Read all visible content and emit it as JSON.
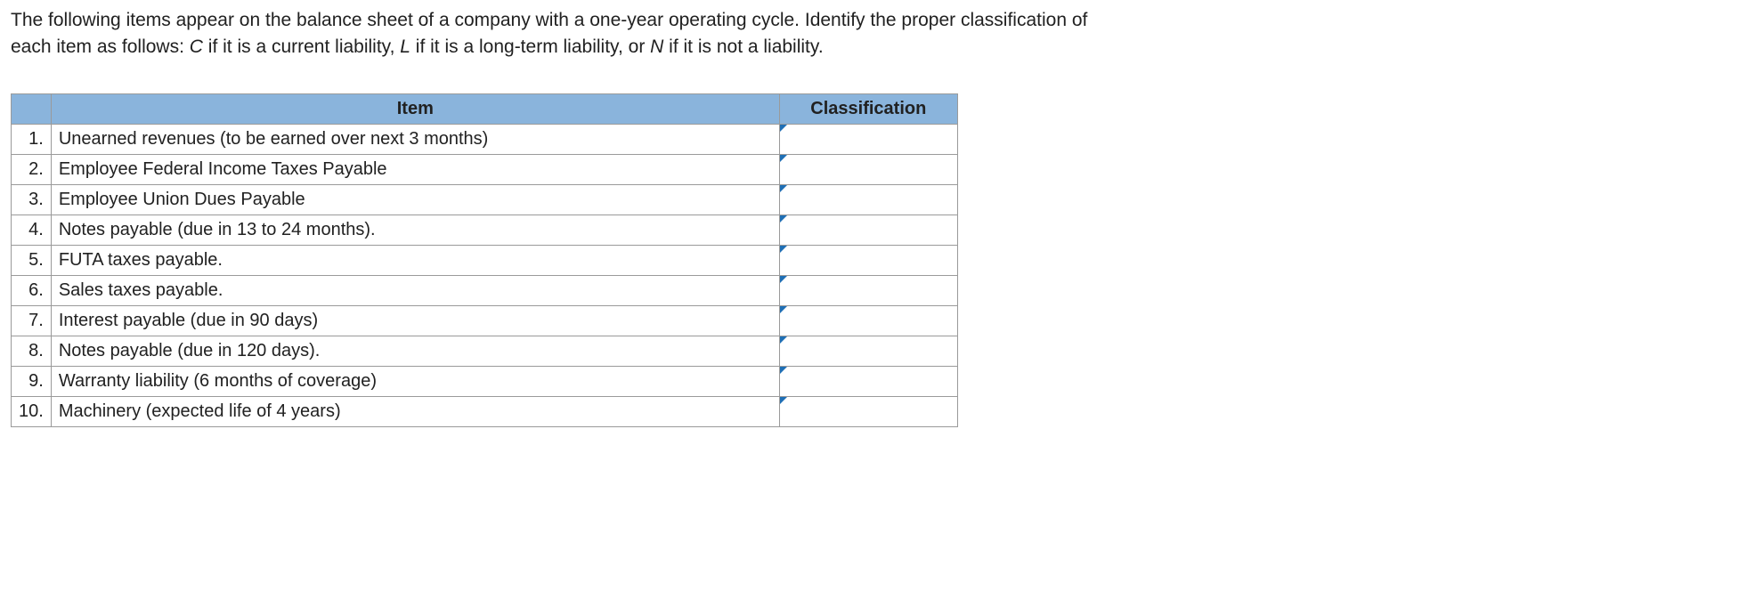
{
  "instructions": {
    "line1": "The following items appear on the balance sheet of a company with a one-year operating cycle. Identify the proper classification of",
    "line2_pre": "each item as follows: ",
    "c": "C",
    "c_desc": " if it is a current liability, ",
    "l": "L",
    "l_desc": " if it is a long-term liability, or ",
    "n": "N",
    "n_desc": " if it is not a liability."
  },
  "table": {
    "headers": {
      "item": "Item",
      "classification": "Classification"
    },
    "col_widths": {
      "num": 44,
      "item": 818,
      "classification": 200
    },
    "header_bg": "#8ab4dc",
    "border_color": "#9a9a9a",
    "dropdown_marker_color": "#1f6fb5",
    "rows": [
      {
        "num": "1.",
        "item": "Unearned revenues (to be earned over next 3 months)",
        "classification": ""
      },
      {
        "num": "2.",
        "item": "Employee Federal Income Taxes Payable",
        "classification": ""
      },
      {
        "num": "3.",
        "item": "Employee Union Dues Payable",
        "classification": ""
      },
      {
        "num": "4.",
        "item": "Notes payable (due in 13 to 24 months).",
        "classification": ""
      },
      {
        "num": "5.",
        "item": "FUTA taxes payable.",
        "classification": ""
      },
      {
        "num": "6.",
        "item": "Sales taxes payable.",
        "classification": ""
      },
      {
        "num": "7.",
        "item": "Interest payable (due in 90 days)",
        "classification": ""
      },
      {
        "num": "8.",
        "item": "Notes payable (due in 120 days).",
        "classification": ""
      },
      {
        "num": "9.",
        "item": "Warranty liability (6 months of coverage)",
        "classification": ""
      },
      {
        "num": "10.",
        "item": "Machinery (expected life of 4 years)",
        "classification": ""
      }
    ]
  }
}
